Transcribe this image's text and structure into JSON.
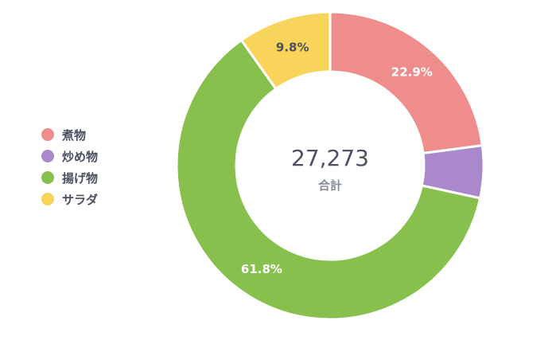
{
  "chart_data": {
    "type": "pie",
    "title": "",
    "categories": [
      "煮物",
      "炒め物",
      "揚げ物",
      "サラダ"
    ],
    "values": [
      22.9,
      5.5,
      61.8,
      9.8
    ],
    "labels_shown": [
      "22.9%",
      "",
      "61.8%",
      "9.8%"
    ],
    "colors": [
      "#ef8c8c",
      "#a988cc",
      "#88c04e",
      "#f9d45a"
    ],
    "label_colors": [
      "#ffffff",
      "#ffffff",
      "#ffffff",
      "#4a4f5e"
    ],
    "donut": true,
    "center_value": "27,273",
    "center_label": "合計",
    "legend_position": "left"
  }
}
